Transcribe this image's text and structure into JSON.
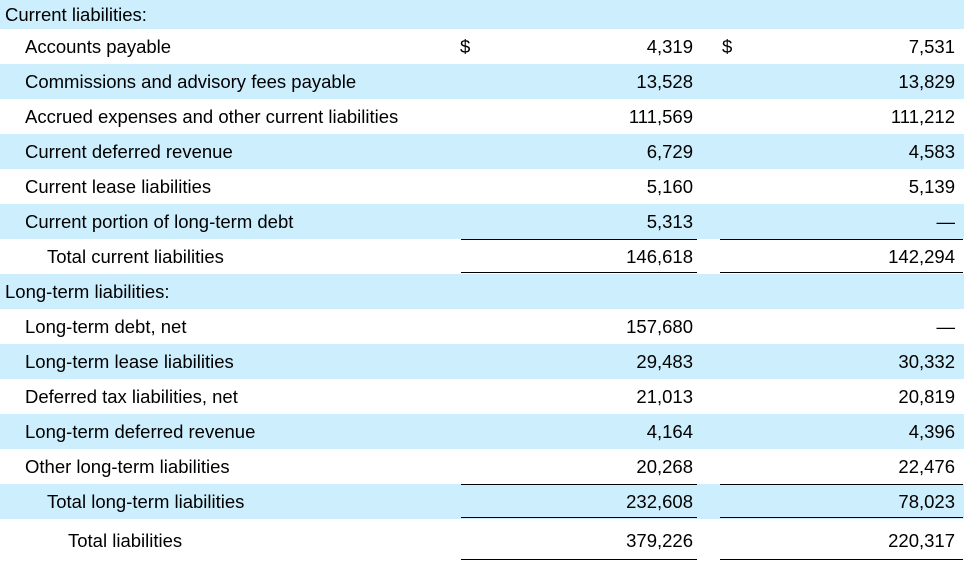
{
  "sections": [
    {
      "title": "Current liabilities:",
      "items": [
        {
          "label": "Accounts payable",
          "currency": [
            "$",
            "$"
          ],
          "values": [
            "4,319",
            "7,531"
          ]
        },
        {
          "label": "Commissions and advisory fees payable",
          "values": [
            "13,528",
            "13,829"
          ]
        },
        {
          "label": "Accrued expenses and other current liabilities",
          "values": [
            "111,569",
            "111,212"
          ]
        },
        {
          "label": "Current deferred revenue",
          "values": [
            "6,729",
            "4,583"
          ]
        },
        {
          "label": "Current lease liabilities",
          "values": [
            "5,160",
            "5,139"
          ]
        },
        {
          "label": "Current portion of long-term debt",
          "values": [
            "5,313",
            "—"
          ]
        }
      ],
      "total": {
        "label": "Total current liabilities",
        "values": [
          "146,618",
          "142,294"
        ]
      }
    },
    {
      "title": "Long-term liabilities:",
      "items": [
        {
          "label": "Long-term debt, net",
          "values": [
            "157,680",
            "—"
          ]
        },
        {
          "label": "Long-term lease liabilities",
          "values": [
            "29,483",
            "30,332"
          ]
        },
        {
          "label": "Deferred tax liabilities, net",
          "values": [
            "21,013",
            "20,819"
          ]
        },
        {
          "label": "Long-term deferred revenue",
          "values": [
            "4,164",
            "4,396"
          ]
        },
        {
          "label": "Other long-term liabilities",
          "values": [
            "20,268",
            "22,476"
          ]
        }
      ],
      "total": {
        "label": "Total long-term liabilities",
        "values": [
          "232,608",
          "78,023"
        ]
      }
    }
  ],
  "grand_total": {
    "label": "Total liabilities",
    "values": [
      "379,226",
      "220,317"
    ]
  }
}
